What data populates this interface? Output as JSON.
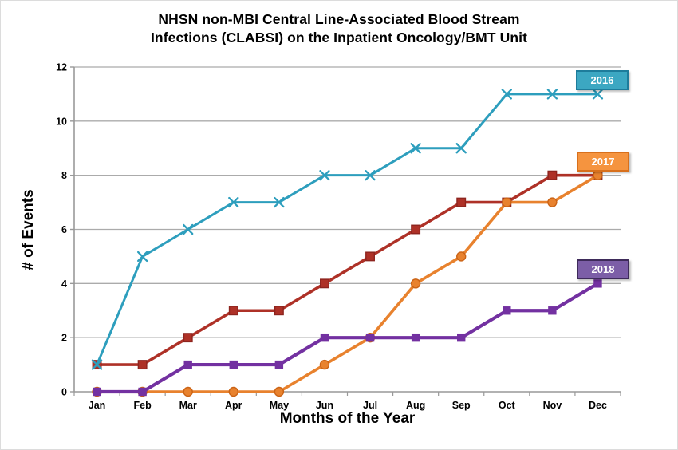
{
  "header": {
    "title_line1": "NHSN non-MBI Central Line-Associated Blood Stream",
    "title_line2": "Infections (CLABSI) on the Inpatient Oncology/BMT Unit"
  },
  "chart_data": {
    "type": "line",
    "title": "NHSN non-MBI Central Line-Associated Blood Stream Infections (CLABSI) on the Inpatient Oncology/BMT Unit",
    "xlabel": "Months of the Year",
    "ylabel": "# of Events",
    "categories": [
      "Jan",
      "Feb",
      "Mar",
      "Apr",
      "May",
      "Jun",
      "Jul",
      "Aug",
      "Sep",
      "Oct",
      "Nov",
      "Dec"
    ],
    "ylim": [
      0,
      12
    ],
    "yticks": [
      0,
      2,
      4,
      6,
      8,
      10,
      12
    ],
    "grid": "horizontal-only",
    "legend_position": "right-of-line-ends",
    "series": [
      {
        "label": null,
        "color": "#AE3127",
        "marker": "square",
        "marker_edge": "#8D241E",
        "marker_size": 10.5,
        "line_width": 3.6,
        "values": [
          1,
          1,
          2,
          3,
          3,
          4,
          5,
          6,
          7,
          7,
          8,
          8
        ]
      },
      {
        "label": "2016",
        "color": "#2D9EBD",
        "marker": "x",
        "marker_edge": "#2D9EBD",
        "marker_size": 11,
        "line_width": 3,
        "values": [
          1,
          5,
          6,
          7,
          7,
          8,
          8,
          9,
          9,
          11,
          11,
          11
        ]
      },
      {
        "label": "2017",
        "color": "#E8822E",
        "marker": "circle",
        "marker_edge": "#CB6315",
        "marker_size": 11,
        "line_width": 3.6,
        "values": [
          0,
          0,
          0,
          0,
          0,
          1,
          2,
          4,
          5,
          7,
          7,
          8
        ]
      },
      {
        "label": "2018",
        "color": "#7331A1",
        "marker": "square",
        "marker_edge": "#7331A1",
        "marker_size": 9,
        "line_width": 4.2,
        "values": [
          0,
          0,
          1,
          1,
          1,
          2,
          2,
          2,
          2,
          3,
          3,
          4
        ]
      }
    ],
    "legend": [
      {
        "label": "2016",
        "fill": "#3CA7C2",
        "border": "#1E7C9B",
        "text_color": "#FFFFFF"
      },
      {
        "label": "2017",
        "fill": "#F5943F",
        "border": "#D8701C",
        "text_color": "#FFFFFF"
      },
      {
        "label": "2018",
        "fill": "#7C5EA7",
        "border": "#3E2B5A",
        "text_color": "#FFFFFF"
      }
    ],
    "axis_color": "#999999",
    "gridline_color": "#ABABAB",
    "tick_label_color": "#000000"
  }
}
